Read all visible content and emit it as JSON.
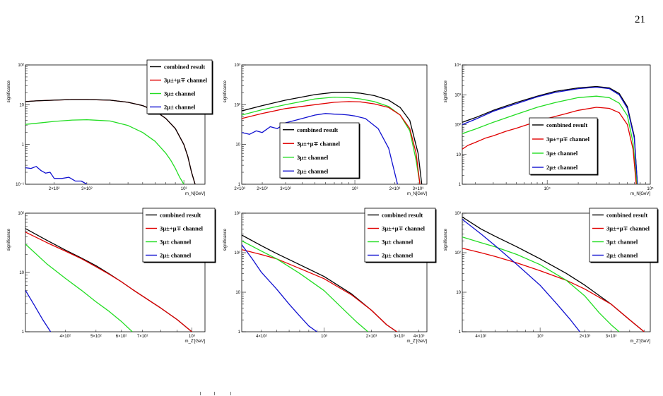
{
  "page": {
    "number": "21"
  },
  "colors": {
    "combined": "#000000",
    "ch3mu_mu": "#e00000",
    "ch3mu": "#22dd22",
    "ch2mu": "#1010d0"
  },
  "legend_labels": {
    "combined": "combined result",
    "ch3mu_mu": "3μ±+μ∓ channel",
    "ch3mu": "3μ± channel",
    "ch2mu": "2μ± channel"
  },
  "chart_data": [
    {
      "type": "line",
      "panel": "top-left",
      "ylabel": "significance",
      "xlabel": "m_N[GeV]",
      "xscale": "log",
      "yscale": "log",
      "xlim": [
        140,
        1300
      ],
      "ylim": [
        0.1,
        100
      ],
      "x_ticks": [
        {
          "v": 200,
          "label": "2×10²"
        },
        {
          "v": 300,
          "label": "3×10²"
        },
        {
          "v": 1000,
          "label": "10³"
        },
        {
          "v": 2000,
          "label": "2×10³"
        }
      ],
      "y_ticks": [
        {
          "v": 0.1,
          "label": "10⁻¹"
        },
        {
          "v": 1,
          "label": "1"
        },
        {
          "v": 10,
          "label": "10"
        },
        {
          "v": 100,
          "label": "10²"
        }
      ],
      "legend": {
        "position": "top-right"
      },
      "series": [
        {
          "key": "ch3mu_mu",
          "x": [
            140,
            160,
            200,
            250,
            300,
            400,
            500,
            600,
            700,
            800,
            900,
            1000,
            1050,
            1100,
            1150
          ],
          "y": [
            12,
            12.5,
            13,
            13.5,
            13.5,
            13,
            11.5,
            9.5,
            7,
            4.5,
            2.5,
            1.0,
            0.5,
            0.2,
            0.1
          ]
        },
        {
          "key": "combined",
          "x": [
            140,
            160,
            200,
            250,
            300,
            400,
            500,
            600,
            700,
            800,
            900,
            1000,
            1050,
            1100,
            1150
          ],
          "y": [
            12,
            12.5,
            13,
            13.5,
            13.5,
            13,
            11.5,
            9.5,
            7,
            4.5,
            2.5,
            1.0,
            0.5,
            0.2,
            0.1
          ]
        },
        {
          "key": "ch3mu",
          "x": [
            140,
            160,
            200,
            250,
            300,
            400,
            500,
            600,
            700,
            800,
            850,
            900,
            950,
            1000
          ],
          "y": [
            3.2,
            3.4,
            3.8,
            4.1,
            4.2,
            3.9,
            3.0,
            2.0,
            1.2,
            0.6,
            0.4,
            0.25,
            0.15,
            0.1
          ]
        },
        {
          "key": "ch2mu",
          "x": [
            140,
            150,
            160,
            170,
            180,
            190,
            200,
            220,
            240,
            260,
            280,
            300
          ],
          "y": [
            0.26,
            0.25,
            0.28,
            0.22,
            0.19,
            0.2,
            0.14,
            0.14,
            0.15,
            0.12,
            0.12,
            0.1
          ]
        }
      ]
    },
    {
      "type": "line",
      "panel": "top-middle",
      "ylabel": "significance",
      "xlabel": "m_N[GeV]",
      "xscale": "log",
      "yscale": "log",
      "xlim": [
        140,
        3500
      ],
      "ylim": [
        1,
        1000
      ],
      "x_ticks": [
        {
          "v": 200,
          "label": "2×10²"
        },
        {
          "v": 300,
          "label": "3×10²"
        },
        {
          "v": 1000,
          "label": "10³"
        },
        {
          "v": 2000,
          "label": "2×10³"
        },
        {
          "v": 3000,
          "label": "3×10³"
        }
      ],
      "y_ticks": [
        {
          "v": 1,
          "label": "1"
        },
        {
          "v": 10,
          "label": "10"
        },
        {
          "v": 100,
          "label": "10²"
        },
        {
          "v": 1000,
          "label": "10³"
        }
      ],
      "legend": {
        "position": "bottom-center"
      },
      "series": [
        {
          "key": "combined",
          "x": [
            140,
            200,
            300,
            500,
            700,
            900,
            1100,
            1400,
            1800,
            2200,
            2600,
            3000,
            3200
          ],
          "y": [
            70,
            95,
            130,
            180,
            205,
            205,
            195,
            170,
            130,
            85,
            40,
            6,
            1
          ]
        },
        {
          "key": "ch3mu",
          "x": [
            140,
            200,
            300,
            500,
            700,
            900,
            1100,
            1400,
            1800,
            2200,
            2600,
            2900,
            3100
          ],
          "y": [
            55,
            75,
            100,
            140,
            155,
            150,
            140,
            120,
            90,
            55,
            22,
            4,
            1
          ]
        },
        {
          "key": "ch3mu_mu",
          "x": [
            140,
            200,
            300,
            500,
            700,
            900,
            1100,
            1400,
            1800,
            2200,
            2600,
            2900,
            3100
          ],
          "y": [
            45,
            60,
            80,
            100,
            115,
            120,
            118,
            105,
            85,
            55,
            25,
            6,
            1
          ]
        },
        {
          "key": "ch2mu",
          "x": [
            140,
            160,
            180,
            200,
            230,
            260,
            300,
            350,
            400,
            500,
            600,
            700,
            800,
            900,
            1000,
            1200,
            1500,
            1800,
            2100
          ],
          "y": [
            20,
            18,
            22,
            20,
            28,
            25,
            35,
            40,
            45,
            55,
            60,
            58,
            57,
            55,
            52,
            45,
            25,
            8,
            1
          ]
        }
      ]
    },
    {
      "type": "line",
      "panel": "top-right",
      "ylabel": "significance",
      "xlabel": "m_N[GeV]",
      "xscale": "log",
      "yscale": "log",
      "xlim": [
        1500,
        100000
      ],
      "ylim": [
        1,
        10000
      ],
      "x_ticks": [
        {
          "v": 10000,
          "label": "10⁴"
        },
        {
          "v": 100000,
          "label": "10⁵"
        }
      ],
      "y_ticks": [
        {
          "v": 1,
          "label": "1"
        },
        {
          "v": 10,
          "label": "10"
        },
        {
          "v": 100,
          "label": "10²"
        },
        {
          "v": 1000,
          "label": "10³"
        },
        {
          "v": 10000,
          "label": "10⁴"
        }
      ],
      "legend": {
        "position": "bottom-center"
      },
      "series": [
        {
          "key": "combined",
          "x": [
            1500,
            2000,
            3000,
            5000,
            8000,
            12000,
            20000,
            30000,
            40000,
            50000,
            60000,
            70000,
            75000
          ],
          "y": [
            120,
            170,
            300,
            550,
            900,
            1300,
            1700,
            1900,
            1700,
            1100,
            400,
            40,
            1
          ]
        },
        {
          "key": "ch2mu",
          "x": [
            1500,
            2000,
            3000,
            5000,
            8000,
            12000,
            20000,
            30000,
            40000,
            50000,
            60000,
            70000,
            75000
          ],
          "y": [
            100,
            150,
            280,
            500,
            850,
            1200,
            1600,
            1800,
            1600,
            1000,
            350,
            35,
            1
          ]
        },
        {
          "key": "ch3mu",
          "x": [
            1500,
            2000,
            3000,
            5000,
            8000,
            12000,
            20000,
            30000,
            40000,
            50000,
            60000,
            68000,
            74000
          ],
          "y": [
            50,
            70,
            120,
            220,
            380,
            550,
            800,
            900,
            800,
            520,
            200,
            25,
            1
          ]
        },
        {
          "key": "ch3mu_mu",
          "x": [
            1500,
            1700,
            2000,
            2500,
            3000,
            4000,
            5000,
            7000,
            10000,
            15000,
            20000,
            30000,
            40000,
            50000,
            60000,
            68000,
            73000
          ],
          "y": [
            15,
            20,
            25,
            35,
            42,
            60,
            75,
            110,
            160,
            230,
            300,
            380,
            350,
            250,
            100,
            15,
            1
          ]
        }
      ]
    },
    {
      "type": "line",
      "panel": "bottom-left",
      "ylabel": "significance",
      "xlabel": "m_Z'[GeV]",
      "xscale": "log",
      "yscale": "log",
      "xlim": [
        300,
        1100
      ],
      "ylim": [
        1,
        100
      ],
      "x_ticks": [
        {
          "v": 400,
          "label": "4×10²"
        },
        {
          "v": 500,
          "label": "5×10²"
        },
        {
          "v": 600,
          "label": "6×10²"
        },
        {
          "v": 700,
          "label": "7×10²"
        },
        {
          "v": 1000,
          "label": "10³"
        }
      ],
      "y_ticks": [
        {
          "v": 1,
          "label": "1"
        },
        {
          "v": 10,
          "label": "10"
        },
        {
          "v": 100,
          "label": "10²"
        }
      ],
      "legend": {
        "position": "top-right"
      },
      "series": [
        {
          "key": "combined",
          "x": [
            300,
            350,
            400,
            450,
            500,
            550,
            600,
            650,
            700,
            800,
            900,
            1000
          ],
          "y": [
            55,
            35,
            24,
            17.5,
            13,
            9.5,
            7.0,
            5.2,
            4.0,
            2.5,
            1.6,
            1.0
          ]
        },
        {
          "key": "ch3mu_mu",
          "x": [
            300,
            350,
            400,
            450,
            500,
            550,
            600,
            650,
            700,
            800,
            900,
            1000
          ],
          "y": [
            48,
            32,
            23,
            17,
            12.5,
            9.3,
            7.0,
            5.2,
            4.0,
            2.5,
            1.6,
            1.0
          ]
        },
        {
          "key": "ch3mu",
          "x": [
            300,
            350,
            400,
            450,
            500,
            550,
            600,
            650
          ],
          "y": [
            30,
            14,
            8.0,
            5.0,
            3.2,
            2.2,
            1.5,
            1.0
          ]
        },
        {
          "key": "ch2mu",
          "x": [
            300,
            320,
            340,
            360
          ],
          "y": [
            5.0,
            2.8,
            1.6,
            1.0
          ]
        }
      ]
    },
    {
      "type": "line",
      "panel": "bottom-middle",
      "ylabel": "significance",
      "xlabel": "m_Z'[GeV]",
      "xscale": "log",
      "yscale": "log",
      "xlim": [
        300,
        4500
      ],
      "ylim": [
        1,
        1000
      ],
      "x_ticks": [
        {
          "v": 400,
          "label": "4×10²"
        },
        {
          "v": 1000,
          "label": "10³"
        },
        {
          "v": 2000,
          "label": "2×10³"
        },
        {
          "v": 3000,
          "label": "3×10³"
        },
        {
          "v": 4000,
          "label": "4×10³"
        }
      ],
      "y_ticks": [
        {
          "v": 1,
          "label": "1"
        },
        {
          "v": 10,
          "label": "10"
        },
        {
          "v": 100,
          "label": "10²"
        },
        {
          "v": 1000,
          "label": "10³"
        }
      ],
      "legend": {
        "position": "top-right"
      },
      "series": [
        {
          "key": "combined",
          "x": [
            300,
            400,
            500,
            700,
            1000,
            1500,
            2000,
            2500,
            2900
          ],
          "y": [
            280,
            150,
            95,
            50,
            25,
            9,
            3.5,
            1.5,
            1
          ]
        },
        {
          "key": "ch3mu_mu",
          "x": [
            300,
            400,
            500,
            700,
            1000,
            1500,
            2000,
            2500,
            2900
          ],
          "y": [
            120,
            90,
            70,
            40,
            22,
            8.5,
            3.5,
            1.5,
            1
          ]
        },
        {
          "key": "ch3mu",
          "x": [
            300,
            400,
            500,
            700,
            1000,
            1300,
            1600,
            1900
          ],
          "y": [
            200,
            110,
            70,
            30,
            11,
            4,
            1.8,
            1
          ]
        },
        {
          "key": "ch2mu",
          "x": [
            300,
            350,
            400,
            500,
            600,
            700,
            800,
            900
          ],
          "y": [
            160,
            70,
            32,
            12,
            5,
            2.5,
            1.4,
            1
          ]
        }
      ]
    },
    {
      "type": "line",
      "panel": "bottom-right",
      "ylabel": "significance",
      "xlabel": "m_Z'[GeV]",
      "xscale": "log",
      "yscale": "log",
      "xlim": [
        300,
        5500
      ],
      "ylim": [
        1,
        1000
      ],
      "x_ticks": [
        {
          "v": 400,
          "label": "4×10²"
        },
        {
          "v": 1000,
          "label": "10³"
        },
        {
          "v": 2000,
          "label": "2×10³"
        },
        {
          "v": 3000,
          "label": "3×10³"
        }
      ],
      "y_ticks": [
        {
          "v": 1,
          "label": "1"
        },
        {
          "v": 10,
          "label": "10"
        },
        {
          "v": 100,
          "label": "10²"
        },
        {
          "v": 1000,
          "label": "10³"
        }
      ],
      "legend": {
        "position": "top-right"
      },
      "series": [
        {
          "key": "combined",
          "x": [
            300,
            400,
            500,
            700,
            1000,
            1500,
            2000,
            3000,
            4000,
            5000
          ],
          "y": [
            800,
            400,
            260,
            140,
            70,
            30,
            15,
            5,
            2,
            1
          ]
        },
        {
          "key": "ch3mu_mu",
          "x": [
            300,
            400,
            500,
            700,
            1000,
            1500,
            2000,
            3000,
            4000,
            5000
          ],
          "y": [
            130,
            100,
            80,
            55,
            35,
            20,
            12,
            5,
            2,
            1
          ]
        },
        {
          "key": "ch3mu",
          "x": [
            300,
            400,
            500,
            700,
            1000,
            1500,
            2000,
            2500,
            3000,
            3400
          ],
          "y": [
            250,
            180,
            140,
            90,
            50,
            20,
            8,
            3,
            1.5,
            1
          ]
        },
        {
          "key": "ch2mu",
          "x": [
            300,
            400,
            500,
            700,
            1000,
            1300,
            1600,
            1850
          ],
          "y": [
            700,
            300,
            150,
            50,
            15,
            5,
            2,
            1
          ]
        }
      ]
    }
  ]
}
